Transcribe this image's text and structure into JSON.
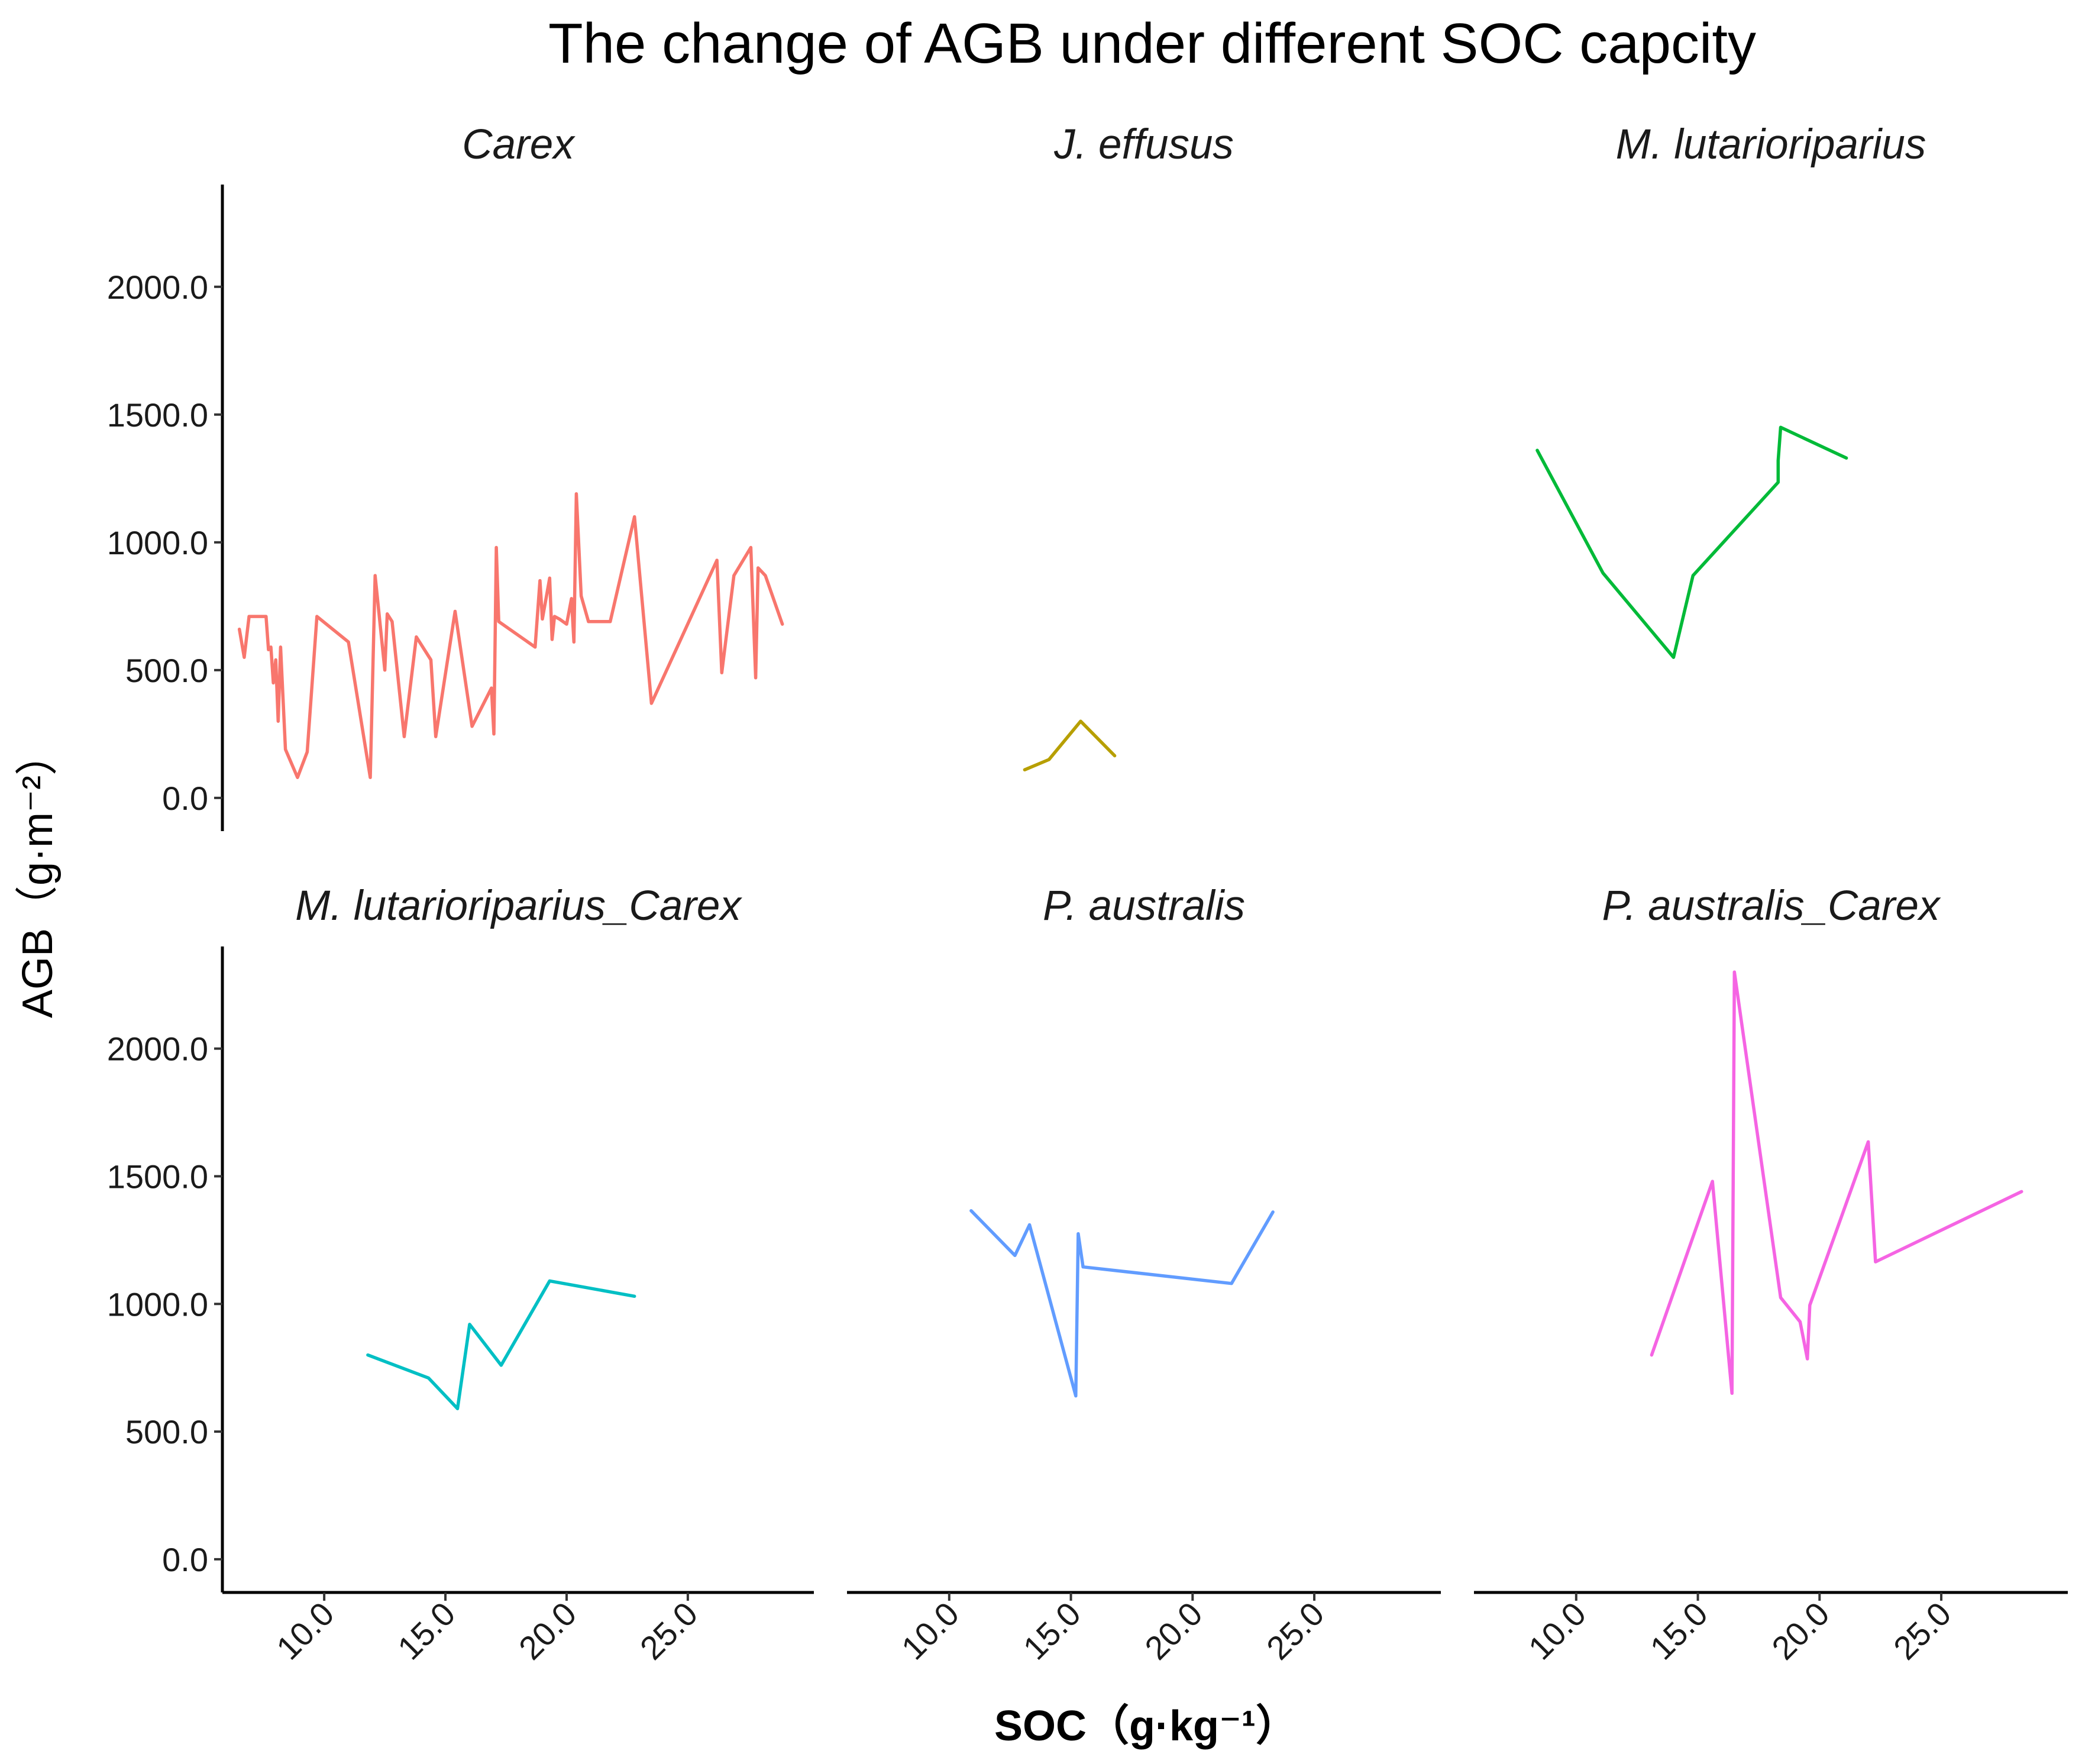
{
  "chart_data": {
    "type": "line",
    "title": "The change of AGB under different SOC capcity",
    "xlabel": "SOC（g·kg⁻¹）",
    "ylabel": "AGB（g·m⁻²）",
    "xlim": [
      5.8,
      30.2
    ],
    "ylim": [
      -130,
      2400
    ],
    "xticks": [
      10,
      15,
      20,
      25
    ],
    "xtick_labels": [
      "10.0",
      "15.0",
      "20.0",
      "25.0"
    ],
    "yticks": [
      0,
      500,
      1000,
      1500,
      2000
    ],
    "ytick_labels": [
      "0.0",
      "500.0",
      "1000.0",
      "1500.0",
      "2000.0"
    ],
    "layout": "facet 2 rows x 3 columns",
    "panels": [
      {
        "name": "Carex",
        "color": "#F8766D",
        "x": [
          6.5,
          6.7,
          6.9,
          7.1,
          7.6,
          7.7,
          7.8,
          7.9,
          8.0,
          8.1,
          8.2,
          8.4,
          8.9,
          9.3,
          9.7,
          11.0,
          11.9,
          12.1,
          12.5,
          12.6,
          12.8,
          13.3,
          13.8,
          14.4,
          14.6,
          15.4,
          16.1,
          16.9,
          17.0,
          17.1,
          17.2,
          18.7,
          18.9,
          19.0,
          19.3,
          19.4,
          19.5,
          19.7,
          20.0,
          20.2,
          20.3,
          20.4,
          20.6,
          20.9,
          21.8,
          22.8,
          23.5,
          26.2,
          26.4,
          26.9,
          27.6,
          27.8,
          27.9,
          28.2,
          28.9
        ],
        "y": [
          660,
          550,
          710,
          710,
          710,
          580,
          590,
          450,
          540,
          300,
          590,
          190,
          80,
          180,
          710,
          610,
          80,
          870,
          500,
          720,
          690,
          240,
          630,
          540,
          240,
          730,
          280,
          430,
          250,
          980,
          690,
          590,
          850,
          700,
          860,
          620,
          710,
          700,
          680,
          780,
          610,
          1190,
          790,
          690,
          690,
          1100,
          370,
          930,
          490,
          870,
          980,
          470,
          900,
          870,
          680
        ]
      },
      {
        "name": "J. effusus",
        "color": "#B79F00",
        "x": [
          13.1,
          14.1,
          15.4,
          16.8
        ],
        "y": [
          110,
          150,
          300,
          165
        ]
      },
      {
        "name": "M. lutarioriparius",
        "color": "#00BA38",
        "x": [
          8.4,
          11.1,
          14.0,
          14.8,
          18.3,
          18.3,
          18.4,
          21.1
        ],
        "y": [
          1360,
          880,
          550,
          870,
          1235,
          1320,
          1450,
          1330
        ]
      },
      {
        "name": "M. lutarioriparius_Carex",
        "color": "#00BFC4",
        "x": [
          11.8,
          14.3,
          15.5,
          16.0,
          17.3,
          19.3,
          22.8
        ],
        "y": [
          800,
          710,
          590,
          920,
          760,
          1090,
          1030
        ]
      },
      {
        "name": "P. australis",
        "color": "#619CFF",
        "x": [
          10.9,
          12.7,
          13.3,
          15.2,
          15.3,
          15.5,
          21.6,
          23.3
        ],
        "y": [
          1365,
          1190,
          1310,
          640,
          1275,
          1145,
          1080,
          1360
        ]
      },
      {
        "name": "P. australis_Carex",
        "color": "#F564E3",
        "x": [
          13.1,
          15.6,
          16.4,
          16.5,
          18.4,
          19.2,
          19.5,
          19.6,
          22.0,
          22.3,
          28.3
        ],
        "y": [
          800,
          1480,
          650,
          2300,
          1025,
          930,
          785,
          995,
          1635,
          1165,
          1440
        ]
      }
    ]
  }
}
